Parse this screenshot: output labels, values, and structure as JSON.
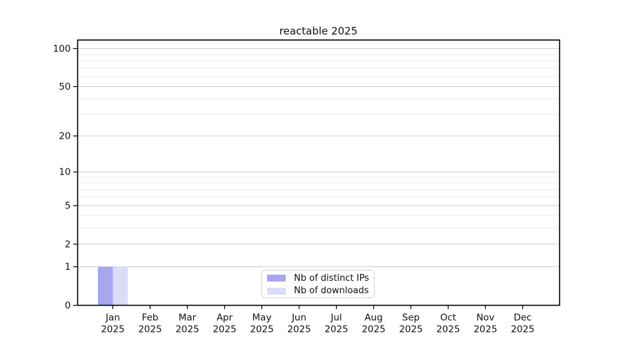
{
  "title": "reactable 2025",
  "chart_data": {
    "type": "bar",
    "title": "reactable 2025",
    "categories": [
      "Jan",
      "Feb",
      "Mar",
      "Apr",
      "May",
      "Jun",
      "Jul",
      "Aug",
      "Sep",
      "Oct",
      "Nov",
      "Dec"
    ],
    "category_year": "2025",
    "series": [
      {
        "name": "Nb of distinct IPs",
        "color": "#a6a6f1",
        "values": [
          1,
          0,
          0,
          0,
          0,
          0,
          0,
          0,
          0,
          0,
          0,
          0
        ]
      },
      {
        "name": "Nb of downloads",
        "color": "#dcdcf8",
        "values": [
          1,
          0,
          0,
          0,
          0,
          0,
          0,
          0,
          0,
          0,
          0,
          0
        ]
      }
    ],
    "y_scale": "symlog",
    "ylim": [
      0,
      100
    ],
    "y_ticks": [
      0,
      1,
      2,
      5,
      10,
      20,
      50,
      100
    ],
    "y_minor_ticks": [
      3,
      4,
      6,
      7,
      8,
      9,
      30,
      40,
      60,
      70,
      80,
      90
    ],
    "xlabel": "",
    "ylabel": "",
    "grid": true,
    "legend_position": "bottom-center"
  },
  "legend": {
    "items": [
      {
        "label": "Nb of distinct IPs",
        "color": "#a6a6f1"
      },
      {
        "label": "Nb of downloads",
        "color": "#dcdcf8"
      }
    ]
  },
  "colors": {
    "background": "#ffffff",
    "axis": "#000000",
    "major_grid": "#cccccc",
    "minor_grid": "#ededed",
    "text": "#111111",
    "legend_border": "#d5d5d5"
  }
}
